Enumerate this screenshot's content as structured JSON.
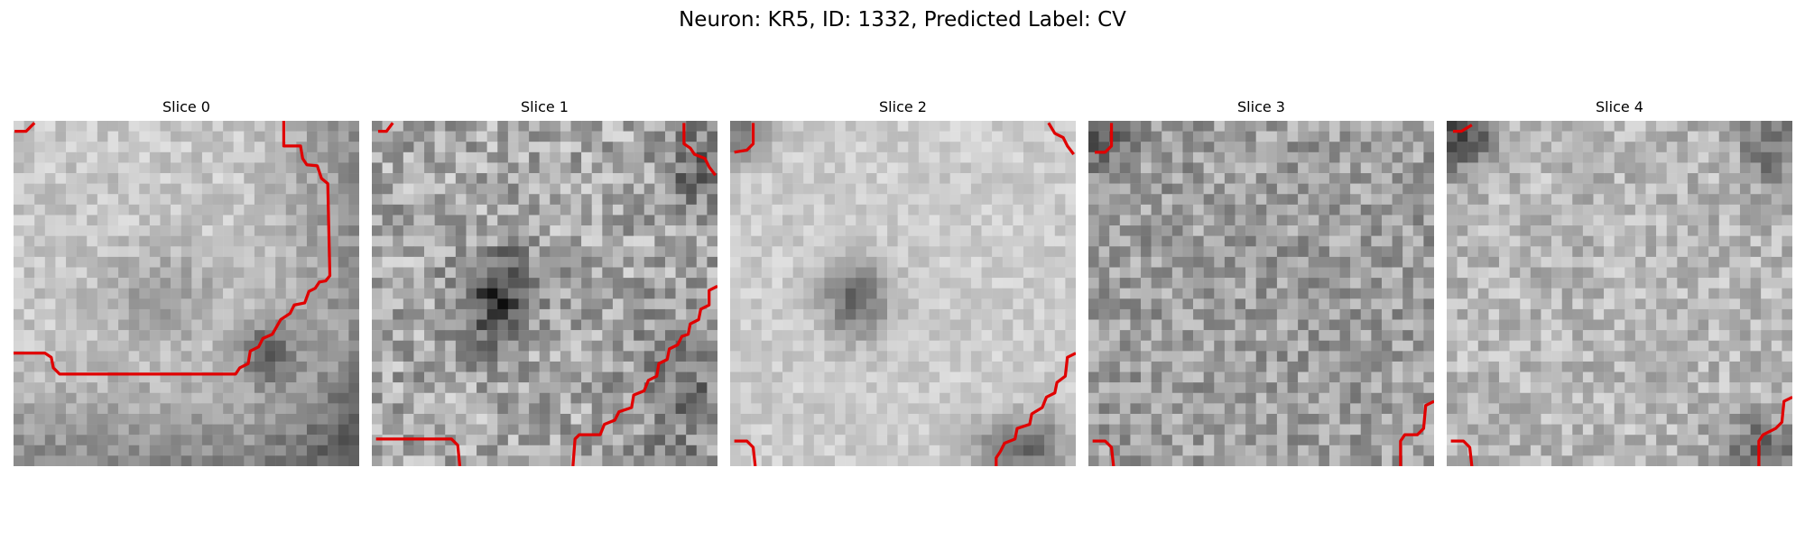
{
  "figure": {
    "title": "Neuron: KR5, ID: 1332, Predicted Label: CV"
  },
  "panels": [
    {
      "title": "Slice 0"
    },
    {
      "title": "Slice 1"
    },
    {
      "title": "Slice 2"
    },
    {
      "title": "Slice 3"
    },
    {
      "title": "Slice 4"
    }
  ],
  "colors": {
    "contour": "#e00000",
    "colormap": "grayscale"
  }
}
